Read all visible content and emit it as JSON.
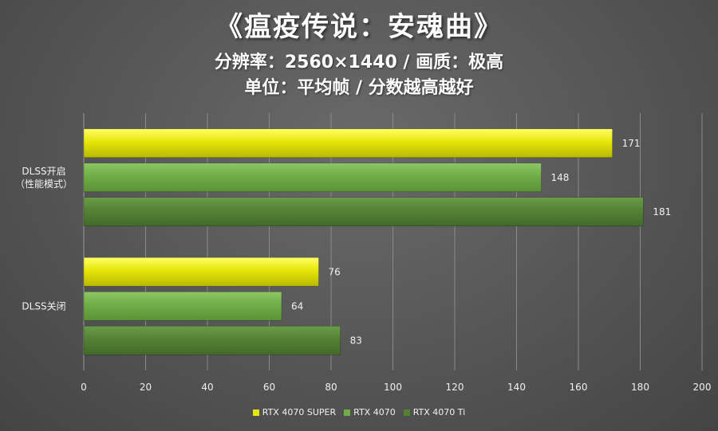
{
  "title": "《瘟疫传说：安魂曲》",
  "subtitles": [
    "分辨率：2560×1440 / 画质：极高",
    "单位：平均帧 / 分数越高越好"
  ],
  "colors": {
    "RTX 4070 SUPER": "#e6e60a",
    "RTX 4070": "#70ad47",
    "RTX 4070 Ti": "#548235"
  },
  "chart_data": {
    "type": "bar",
    "orientation": "horizontal",
    "categories": [
      "DLSS开启\n（性能模式）",
      "DLSS关闭"
    ],
    "series": [
      {
        "name": "RTX 4070 SUPER",
        "values": [
          171,
          76
        ]
      },
      {
        "name": "RTX 4070",
        "values": [
          148,
          64
        ]
      },
      {
        "name": "RTX 4070 Ti",
        "values": [
          181,
          83
        ]
      }
    ],
    "xlim": [
      0,
      200
    ],
    "xticks": [
      0,
      20,
      40,
      60,
      80,
      100,
      120,
      140,
      160,
      180,
      200
    ],
    "grid": "vertical",
    "legend": "bottom"
  }
}
